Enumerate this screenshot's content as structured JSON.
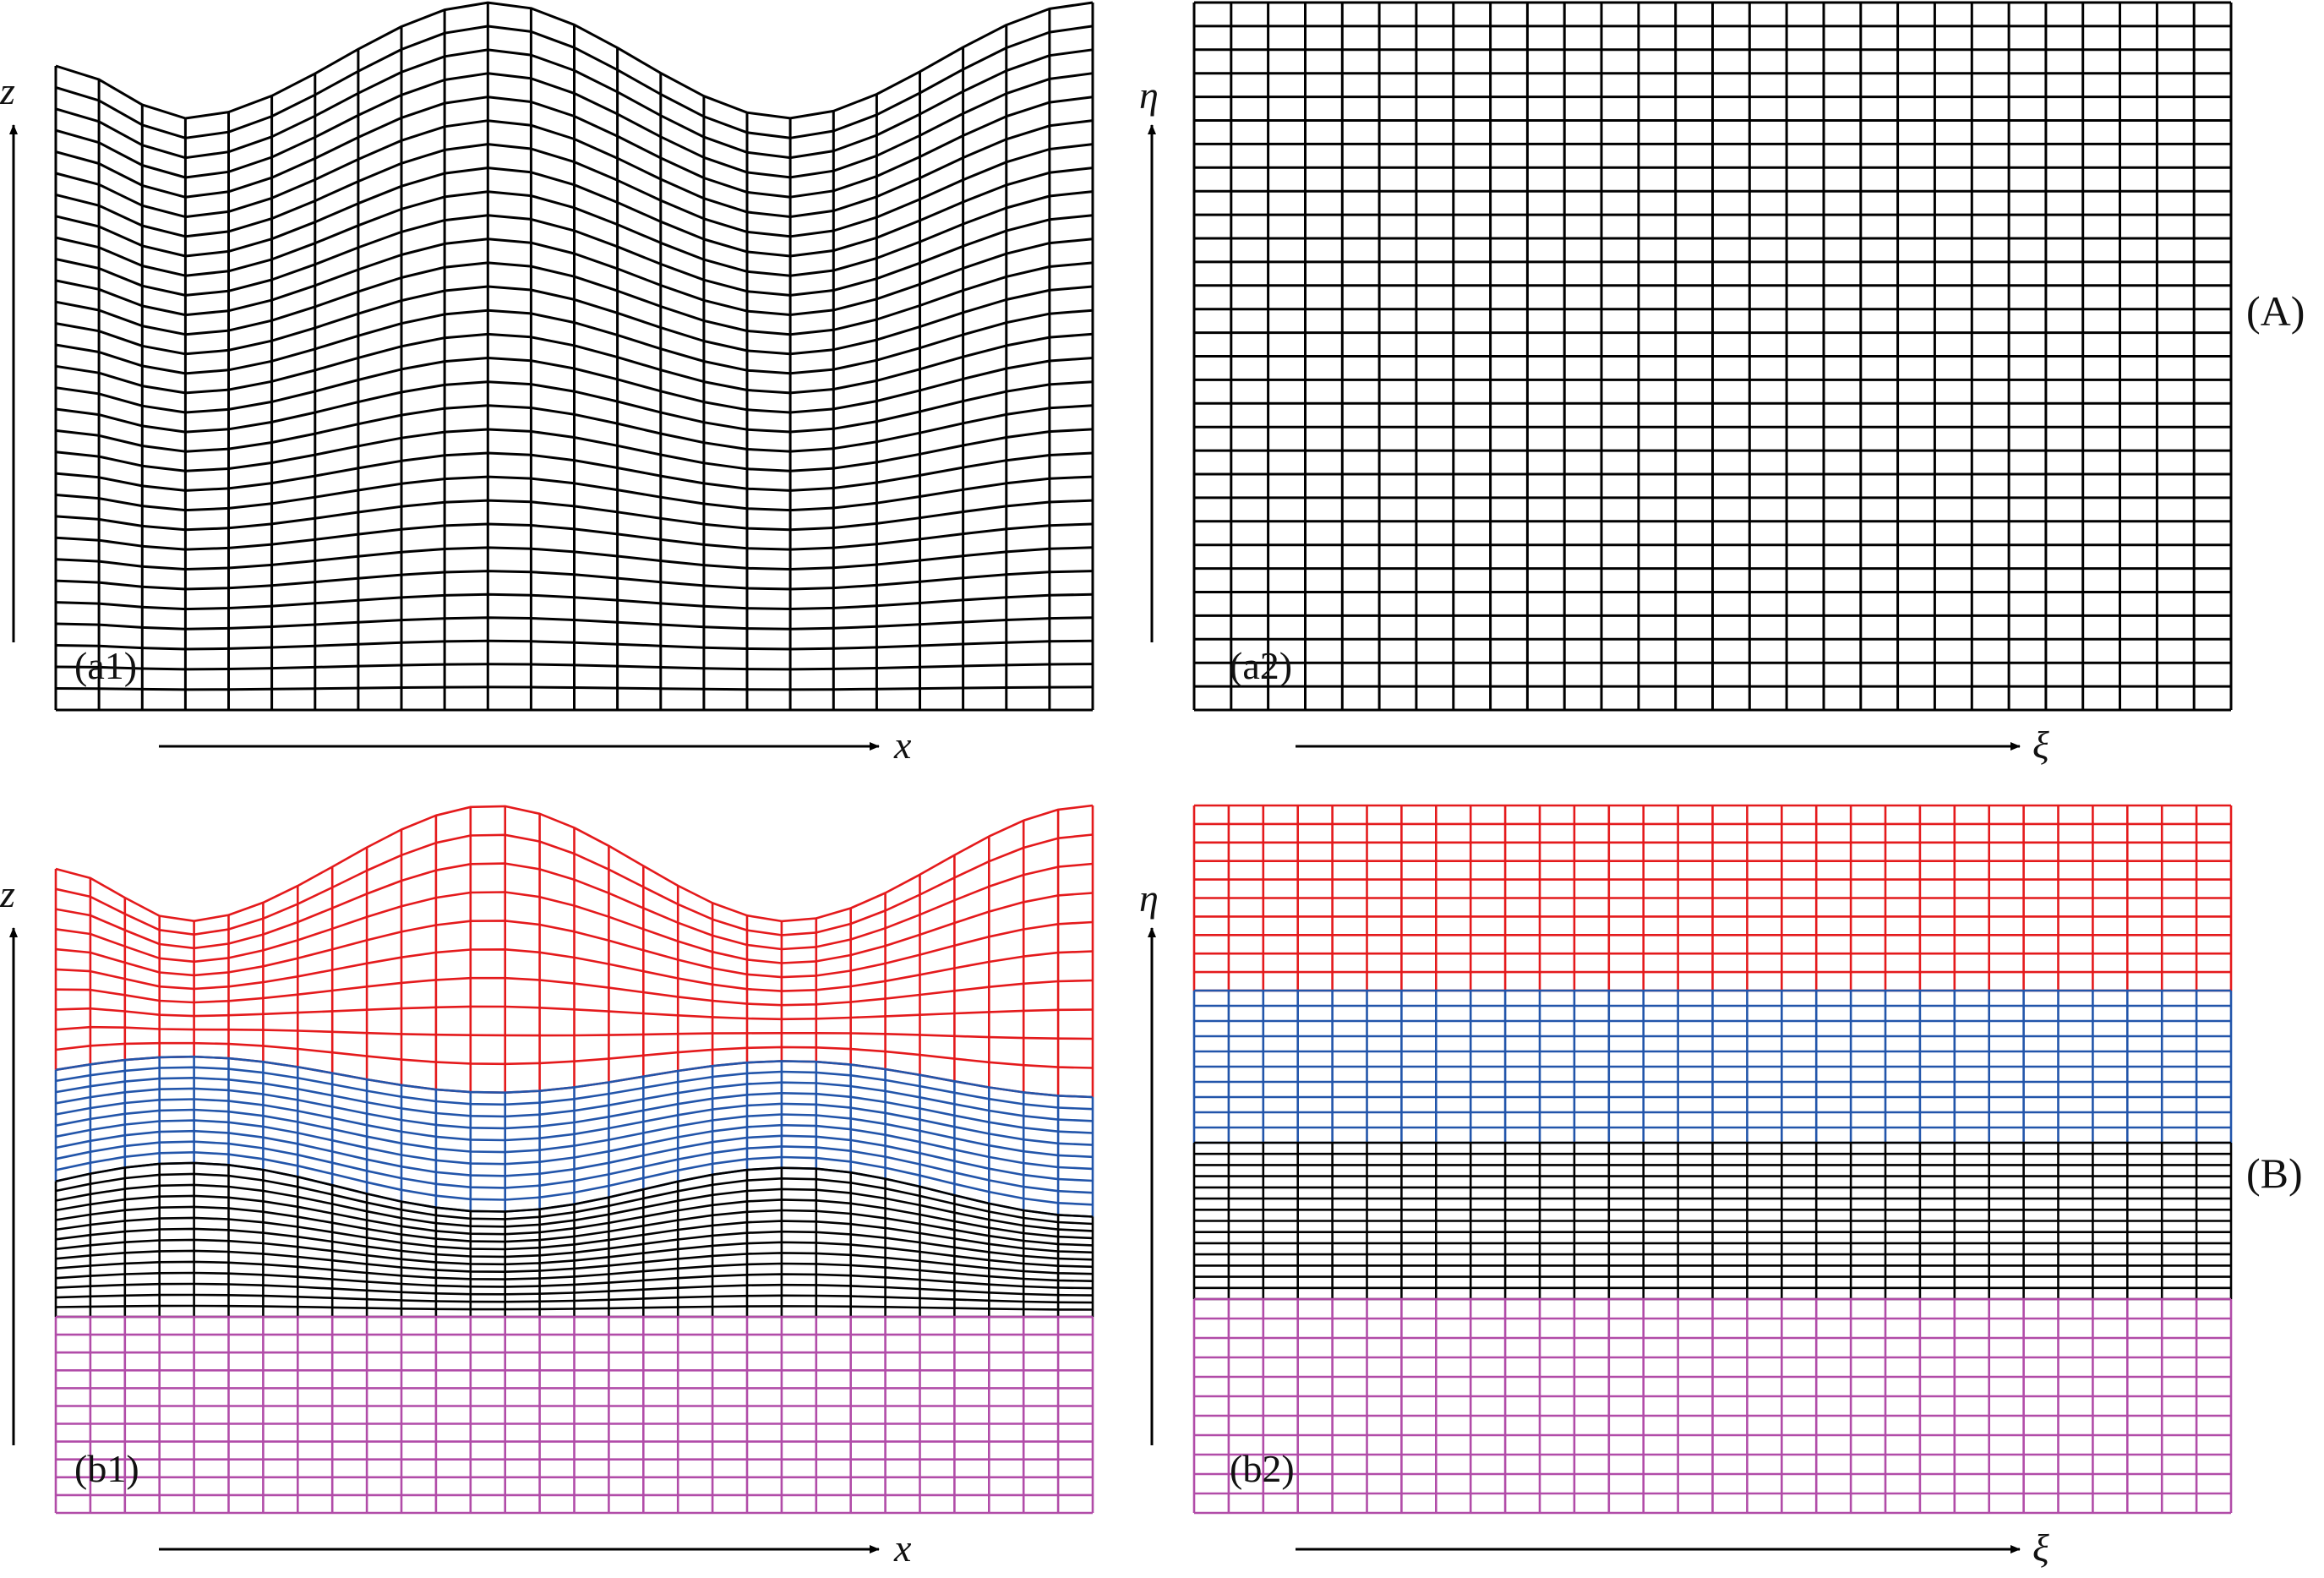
{
  "figure": {
    "panels": {
      "a1": {
        "tag": "(a1)",
        "x_label": "x",
        "y_label": "z",
        "domain": "physical",
        "mesh": "terrain-following"
      },
      "a2": {
        "tag": "(a2)",
        "x_label": "ξ",
        "y_label": "η",
        "domain": "computational",
        "mesh": "uniform"
      },
      "b1": {
        "tag": "(b1)",
        "x_label": "x",
        "y_label": "z",
        "domain": "physical",
        "mesh": "multi-block"
      },
      "b2": {
        "tag": "(b2)",
        "x_label": "ξ",
        "y_label": "η",
        "domain": "computational",
        "mesh": "multi-block"
      }
    },
    "row_labels": {
      "top": "(A)",
      "bottom": "(B)"
    },
    "mesh_A": {
      "columns": 24,
      "rows": 30,
      "color": "#000000"
    },
    "mesh_B": {
      "columns": 30,
      "blocks": [
        {
          "name": "top-block",
          "color": "#e41a1c",
          "rows": 10
        },
        {
          "name": "upper-middle-block",
          "color": "#2255aa",
          "rows": 10
        },
        {
          "name": "lower-middle-block",
          "color": "#000000",
          "rows": 14
        },
        {
          "name": "bottom-block",
          "color": "#b14ca8",
          "rows": 11
        }
      ]
    }
  }
}
